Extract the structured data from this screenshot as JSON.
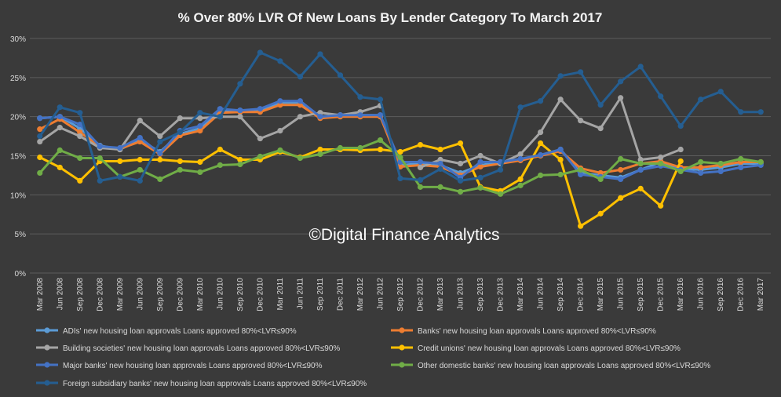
{
  "chart_data": {
    "type": "line",
    "title": "% Over 80% LVR Of New Loans By Lender Category To  March 2017",
    "watermark": "©Digital Finance Analytics",
    "xlabel": "",
    "ylabel": "",
    "ylim": [
      0,
      30
    ],
    "yticks": [
      "0%",
      "5%",
      "10%",
      "15%",
      "20%",
      "25%",
      "30%"
    ],
    "ytick_values": [
      0,
      5,
      10,
      15,
      20,
      25,
      30
    ],
    "grid": true,
    "legend_position": "bottom",
    "categories": [
      "Mar 2008",
      "Jun 2008",
      "Sep 2008",
      "Dec 2008",
      "Mar 2009",
      "Jun 2009",
      "Sep 2009",
      "Dec 2009",
      "Mar 2010",
      "Jun 2010",
      "Sep 2010",
      "Dec 2010",
      "Mar 2011",
      "Jun 2011",
      "Sep 2011",
      "Dec 2011",
      "Mar 2012",
      "Jun 2012",
      "Sep 2012",
      "Dec 2012",
      "Mar 2013",
      "Jun 2013",
      "Sep 2013",
      "Dec 2013",
      "Mar 2014",
      "Jun 2014",
      "Sep 2014",
      "Dec 2014",
      "Mar 2015",
      "Jun 2015",
      "Sep 2015",
      "Dec 2015",
      "Mar 2016",
      "Jun 2016",
      "Sep 2016",
      "Dec 2016",
      "Mar 2017"
    ],
    "series": [
      {
        "name": "ADIs' new housing loan approvals Loans approved 80%<LVR≤90%",
        "color": "#5b9bd5",
        "values": [
          19.8,
          20.0,
          18.5,
          16.3,
          15.8,
          17.0,
          15.5,
          17.8,
          18.5,
          20.8,
          20.8,
          20.8,
          21.8,
          21.8,
          20.0,
          20.2,
          20.2,
          20.2,
          13.8,
          14.0,
          13.8,
          12.8,
          13.8,
          14.2,
          14.5,
          15.0,
          15.8,
          12.8,
          12.5,
          12.2,
          13.2,
          14.2,
          13.3,
          13.2,
          13.5,
          14.0,
          14.0
        ]
      },
      {
        "name": "Banks' new housing loan approvals Loans approved 80%<LVR≤90%",
        "color": "#ed7d31",
        "values": [
          18.4,
          19.7,
          18.0,
          16.2,
          15.9,
          16.8,
          15.2,
          17.6,
          18.2,
          20.5,
          20.6,
          20.6,
          21.5,
          21.5,
          19.8,
          20.0,
          20.0,
          20.0,
          13.6,
          13.8,
          13.6,
          12.5,
          13.6,
          14.0,
          14.4,
          15.0,
          15.6,
          13.4,
          12.8,
          13.2,
          14.0,
          14.3,
          13.5,
          13.5,
          13.8,
          14.2,
          14.2
        ]
      },
      {
        "name": "Building societies' new housing loan approvals Loans approved 80%<LVR≤90%",
        "color": "#a5a5a5",
        "values": [
          16.8,
          18.6,
          17.5,
          16.0,
          15.8,
          19.5,
          17.5,
          19.8,
          19.8,
          20.0,
          20.0,
          17.2,
          18.2,
          20.0,
          20.5,
          20.2,
          20.6,
          21.4,
          null,
          13.5,
          14.5,
          14.0,
          15.0,
          14.0,
          15.2,
          18.0,
          22.2,
          19.5,
          18.5,
          22.4,
          14.5,
          14.8,
          15.8,
          null,
          null,
          null,
          null
        ]
      },
      {
        "name": "Credit unions' new housing loan approvals Loans approved 80%<LVR≤90%",
        "color": "#ffc000",
        "values": [
          14.8,
          13.5,
          11.8,
          14.3,
          14.3,
          14.5,
          14.5,
          14.3,
          14.2,
          15.8,
          14.5,
          14.5,
          15.5,
          14.8,
          15.8,
          15.8,
          15.7,
          15.8,
          15.5,
          16.4,
          15.8,
          16.6,
          11.0,
          10.5,
          12.0,
          16.6,
          14.5,
          6.0,
          7.6,
          9.6,
          10.8,
          8.6,
          14.3,
          null,
          null,
          null,
          null
        ]
      },
      {
        "name": "Major banks' new housing loan approvals Loans approved 80%<LVR≤90%",
        "color": "#4472c4",
        "values": [
          19.8,
          20.0,
          19.0,
          16.2,
          16.0,
          17.3,
          15.3,
          18.2,
          18.8,
          21.0,
          20.8,
          21.0,
          22.0,
          22.0,
          20.0,
          20.2,
          20.2,
          20.2,
          14.2,
          14.2,
          14.0,
          12.2,
          14.2,
          14.2,
          14.6,
          15.1,
          15.8,
          12.6,
          12.3,
          12.0,
          13.2,
          13.7,
          13.2,
          12.8,
          13.0,
          13.5,
          13.8
        ]
      },
      {
        "name": "Other domestic banks' new housing loan approvals Loans approved 80%<LVR≤90%",
        "color": "#70ad47",
        "values": [
          12.8,
          15.7,
          14.7,
          14.7,
          12.3,
          13.2,
          12.0,
          13.2,
          12.9,
          13.8,
          13.9,
          14.9,
          15.7,
          14.7,
          15.2,
          16.0,
          16.0,
          17.0,
          14.8,
          11.0,
          11.0,
          10.4,
          10.9,
          10.1,
          11.2,
          12.5,
          12.6,
          13.2,
          12.0,
          14.6,
          14.0,
          14.0,
          13.0,
          14.2,
          14.0,
          14.6,
          14.2
        ]
      },
      {
        "name": "Foreign subsidiary banks' new housing loan approvals Loans approved 80%<LVR≤90%",
        "color": "#255e91",
        "values": [
          17.5,
          21.2,
          20.5,
          11.8,
          12.3,
          11.8,
          16.8,
          18.0,
          20.5,
          20.0,
          24.2,
          28.2,
          27.1,
          25.1,
          28.0,
          25.3,
          22.5,
          22.2,
          12.1,
          11.9,
          13.3,
          11.8,
          12.2,
          13.2,
          21.2,
          22.0,
          25.2,
          25.7,
          21.5,
          24.5,
          26.4,
          22.6,
          18.8,
          22.2,
          23.2,
          20.6,
          20.6
        ]
      }
    ]
  }
}
